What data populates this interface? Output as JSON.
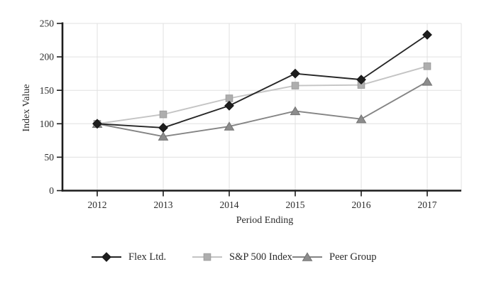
{
  "page": {
    "background": "#ffffff",
    "text_color": "#2b2b2b",
    "gridline_color": "#e0e0e0",
    "axis_color": "#1c1c1c"
  },
  "chart_data": {
    "type": "line",
    "title": "",
    "xlabel": "Period Ending",
    "ylabel": "Index Value",
    "categories": [
      "2012",
      "2013",
      "2014",
      "2015",
      "2016",
      "2017"
    ],
    "ylim": [
      0,
      250
    ],
    "yticks": [
      0,
      50,
      100,
      150,
      200,
      250
    ],
    "grid": true,
    "legend_position": "bottom",
    "series": [
      {
        "name": "Flex Ltd.",
        "marker": "diamond",
        "line_color": "#262626",
        "marker_color": "#1e1e1e",
        "marker_edge": "#161616",
        "values": [
          100,
          94,
          127,
          175,
          166,
          233
        ]
      },
      {
        "name": "S&P 500 Index",
        "marker": "square",
        "line_color": "#c4c4c4",
        "marker_color": "#aeaeae",
        "marker_edge": "#9e9e9e",
        "values": [
          100,
          114,
          138,
          157,
          158,
          186
        ]
      },
      {
        "name": "Peer Group",
        "marker": "triangle",
        "line_color": "#848484",
        "marker_color": "#8c8c8c",
        "marker_edge": "#737373",
        "values": [
          100,
          81,
          96,
          119,
          107,
          163
        ]
      }
    ]
  }
}
